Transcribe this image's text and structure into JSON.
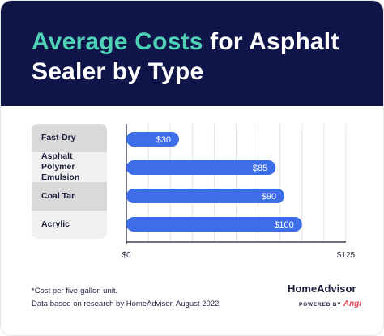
{
  "header": {
    "title_accent": "Average Costs",
    "title_rest": " for Asphalt Sealer by Type"
  },
  "chart_data": {
    "type": "bar",
    "orientation": "horizontal",
    "categories": [
      "Fast-Dry",
      "Asphalt Polymer Emulsion",
      "Coal Tar",
      "Acrylic"
    ],
    "values": [
      30,
      85,
      90,
      100
    ],
    "value_labels": [
      "$30",
      "$85",
      "$90",
      "$100"
    ],
    "xlim": [
      0,
      125
    ],
    "x_tick_labels": [
      "$0",
      "$125"
    ],
    "grid": true,
    "bar_color": "#3d6ee8"
  },
  "footnotes": {
    "line1": "*Cost per five-gallon unit.",
    "line2": "Data based on research by HomeAdvisor, August 2022."
  },
  "brand": {
    "name": "HomeAdvisor",
    "powered_by": "POWERED BY",
    "angi": "Angi"
  },
  "colors": {
    "header_bg": "#0f1548",
    "accent": "#4fd1b5",
    "bar": "#3d6ee8"
  }
}
